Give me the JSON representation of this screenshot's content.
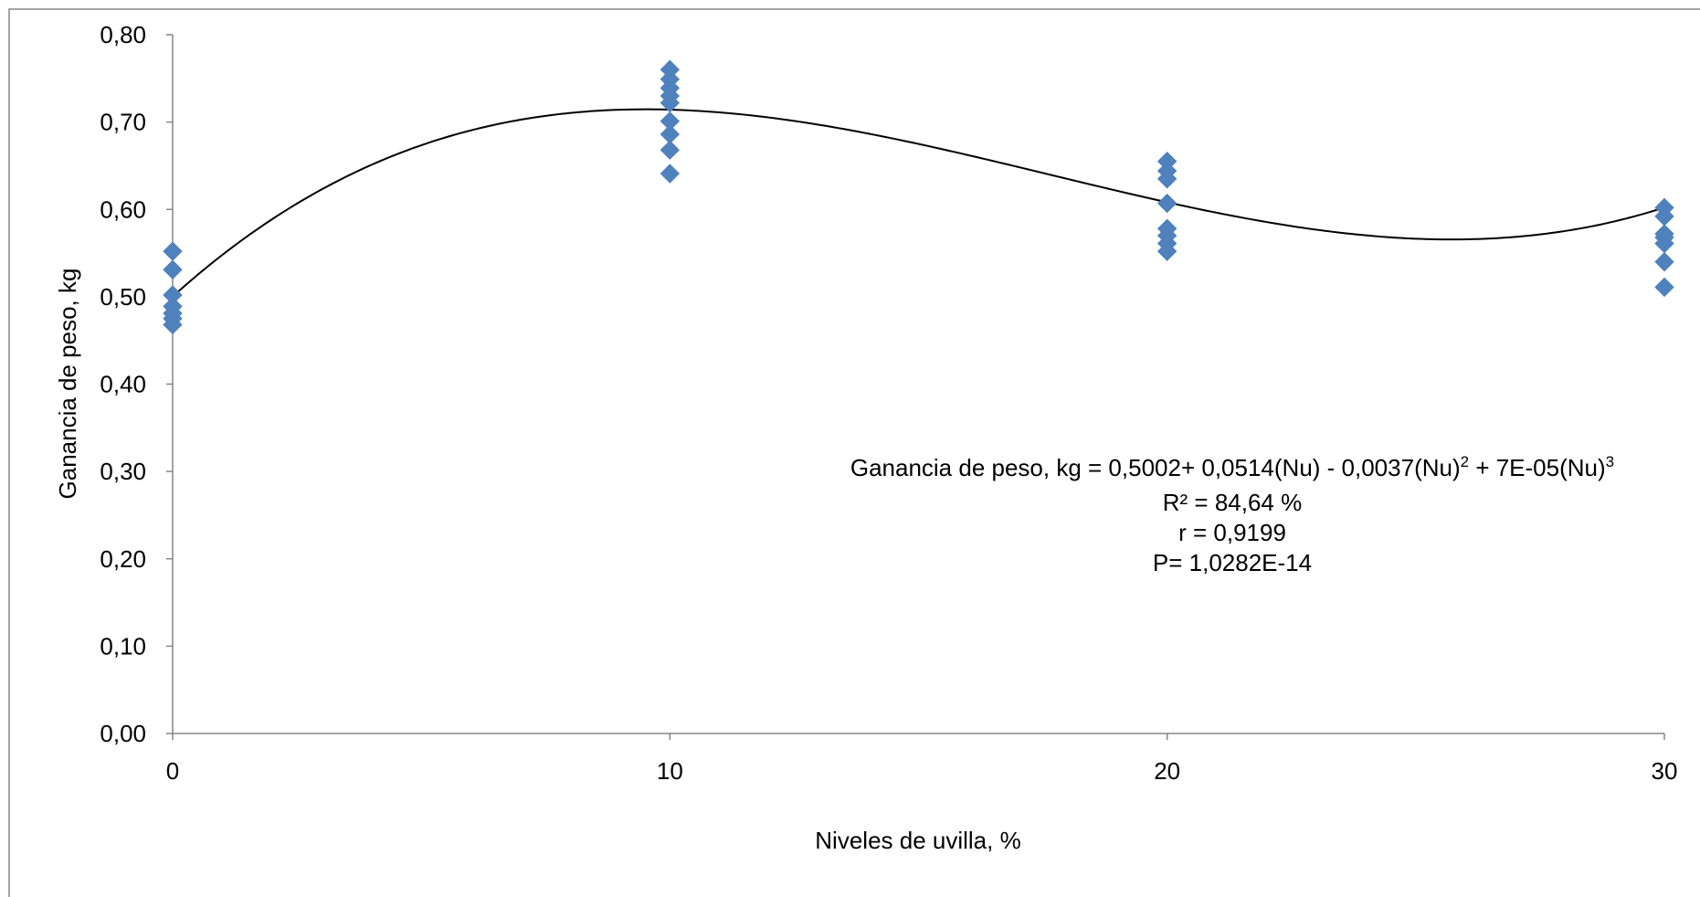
{
  "chart_data": {
    "type": "scatter",
    "xlabel": "Niveles de uvilla, %",
    "ylabel": "Ganancia de peso, kg",
    "xlim": [
      0,
      30
    ],
    "ylim": [
      0,
      0.8
    ],
    "x_ticks": [
      "0",
      "10",
      "20",
      "30"
    ],
    "y_ticks": [
      "0,00",
      "0,10",
      "0,20",
      "0,30",
      "0,40",
      "0,50",
      "0,60",
      "0,70",
      "0,80"
    ],
    "grid": false,
    "marker": "diamond",
    "marker_color": "#4F81BD",
    "series": [
      {
        "points": [
          {
            "x": 0,
            "y": 0.552
          },
          {
            "x": 0,
            "y": 0.531
          },
          {
            "x": 0,
            "y": 0.502
          },
          {
            "x": 0,
            "y": 0.489
          },
          {
            "x": 0,
            "y": 0.481
          },
          {
            "x": 0,
            "y": 0.475
          },
          {
            "x": 0,
            "y": 0.468
          },
          {
            "x": 10,
            "y": 0.76
          },
          {
            "x": 10,
            "y": 0.749
          },
          {
            "x": 10,
            "y": 0.739
          },
          {
            "x": 10,
            "y": 0.73
          },
          {
            "x": 10,
            "y": 0.722
          },
          {
            "x": 10,
            "y": 0.701
          },
          {
            "x": 10,
            "y": 0.686
          },
          {
            "x": 10,
            "y": 0.668
          },
          {
            "x": 10,
            "y": 0.641
          },
          {
            "x": 20,
            "y": 0.655
          },
          {
            "x": 20,
            "y": 0.644
          },
          {
            "x": 20,
            "y": 0.635
          },
          {
            "x": 20,
            "y": 0.607
          },
          {
            "x": 20,
            "y": 0.578
          },
          {
            "x": 20,
            "y": 0.57
          },
          {
            "x": 20,
            "y": 0.561
          },
          {
            "x": 20,
            "y": 0.552
          },
          {
            "x": 30,
            "y": 0.602
          },
          {
            "x": 30,
            "y": 0.592
          },
          {
            "x": 30,
            "y": 0.572
          },
          {
            "x": 30,
            "y": 0.568
          },
          {
            "x": 30,
            "y": 0.561
          },
          {
            "x": 30,
            "y": 0.54
          },
          {
            "x": 30,
            "y": 0.511
          }
        ]
      }
    ],
    "trendline": {
      "type": "polynomial",
      "coefficients": [
        0.5002,
        0.0514,
        -0.0037,
        7e-05
      ],
      "color": "#000000"
    },
    "annotation": {
      "equation_prefix": "Ganancia de peso, kg = 0,5002+ 0,0514(Nu) - 0,0037(Nu)",
      "sup2": "2",
      "equation_mid": " + 7E-05(Nu)",
      "sup3": "3",
      "r2": "R² = 84,64 %",
      "r": "r = 0,9199",
      "p": "P= 1,0282E-14"
    }
  }
}
